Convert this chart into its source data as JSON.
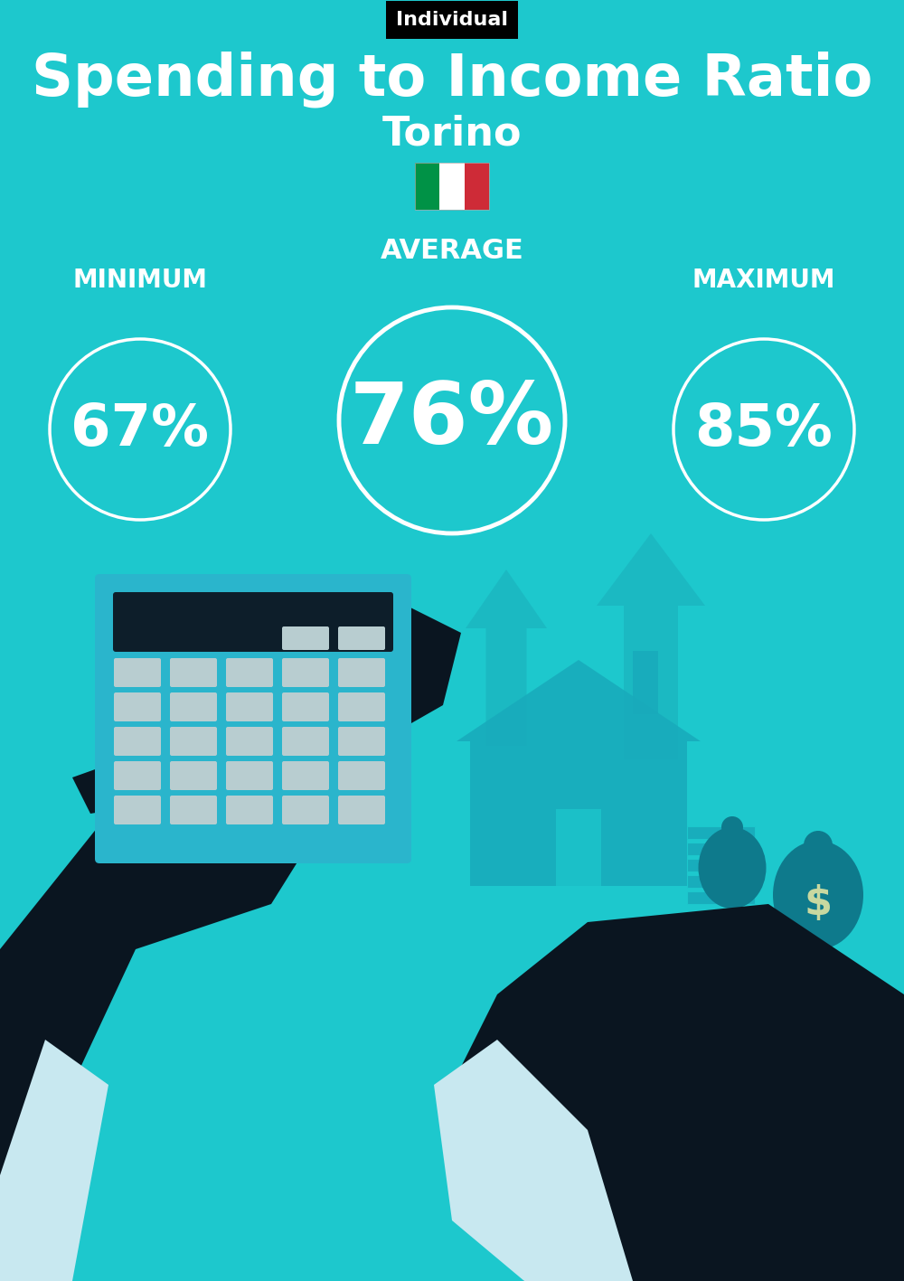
{
  "bg_color": "#1DC8CD",
  "title": "Spending to Income Ratio",
  "city": "Torino",
  "tag_label": "Individual",
  "tag_bg": "#000000",
  "tag_text_color": "#ffffff",
  "min_label": "MINIMUM",
  "avg_label": "AVERAGE",
  "max_label": "MAXIMUM",
  "min_value": "67%",
  "avg_value": "76%",
  "max_value": "85%",
  "circle_color": "#ffffff",
  "text_color": "#ffffff",
  "title_fontsize": 46,
  "city_fontsize": 32,
  "label_fontsize": 20,
  "min_fontsize": 46,
  "avg_fontsize": 68,
  "max_fontsize": 46,
  "tag_fontsize": 16,
  "italy_flag_colors": [
    "#009246",
    "#ffffff",
    "#CE2B37"
  ],
  "figsize": [
    10.0,
    14.17
  ],
  "dpi": 100
}
